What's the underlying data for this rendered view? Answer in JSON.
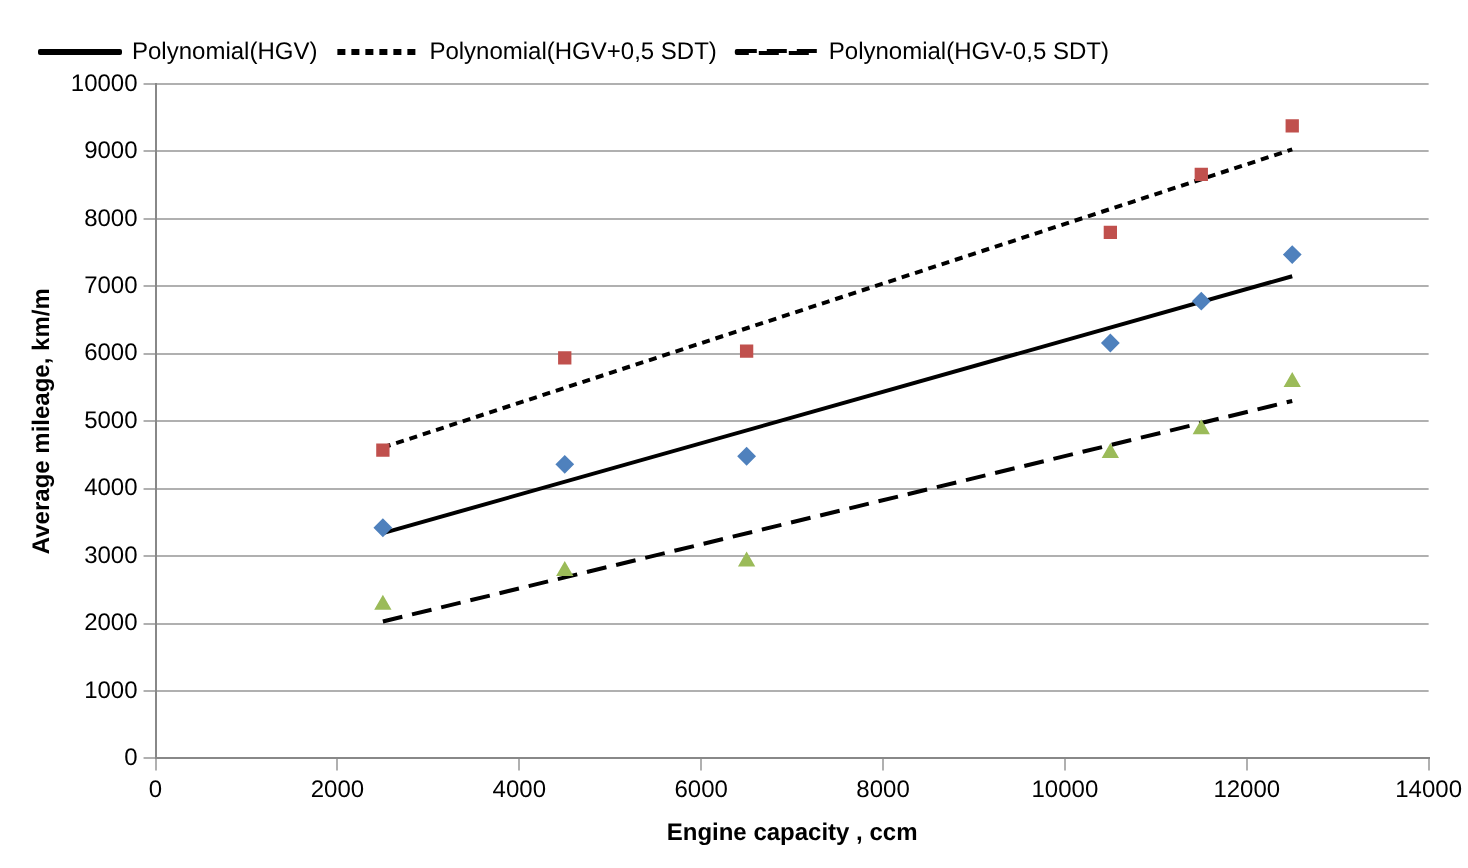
{
  "chart_data": {
    "type": "scatter",
    "xlabel": "Engine capacity , ccm",
    "ylabel": "Average mileage, km/m",
    "xlim": [
      0,
      14000
    ],
    "xticks": [
      0,
      2000,
      4000,
      6000,
      8000,
      10000,
      12000,
      14000
    ],
    "ylim": [
      0,
      10000
    ],
    "yticks": [
      0,
      1000,
      2000,
      3000,
      4000,
      5000,
      6000,
      7000,
      8000,
      9000,
      10000
    ],
    "grid": "y",
    "legend": "top left",
    "series": [
      {
        "type": "scatter",
        "color": "#4f81bd",
        "marker": "diamond",
        "x": [
          2500,
          4500,
          6500,
          10500,
          11500,
          12500
        ],
        "values": [
          3420,
          4360,
          4480,
          6160,
          6780,
          7470
        ]
      },
      {
        "type": "scatter",
        "color": "#c0504d",
        "marker": "square",
        "x": [
          2500,
          4500,
          6500,
          10500,
          11500,
          12500
        ],
        "values": [
          4570,
          5940,
          6040,
          7800,
          8660,
          9380
        ]
      },
      {
        "type": "scatter",
        "color": "#9bbb59",
        "marker": "triangle",
        "x": [
          2500,
          4500,
          6500,
          10500,
          11500,
          12500
        ],
        "values": [
          2280,
          2780,
          2920,
          4530,
          4880,
          5580
        ]
      },
      {
        "type": "line",
        "name": "Polynomial(HGV)",
        "color": "#000000",
        "line_style": "solid",
        "marker": "none",
        "x": [
          2500,
          12500
        ],
        "values": [
          3340,
          7150
        ]
      },
      {
        "type": "line",
        "name": "Polynomial(HGV+0,5 SDT)",
        "color": "#000000",
        "line_style": "dotted",
        "marker": "none",
        "x": [
          2500,
          12500
        ],
        "values": [
          4610,
          9030
        ]
      },
      {
        "type": "line",
        "name": "Polynomial(HGV-0,5 SDT)",
        "color": "#000000",
        "line_style": "dashed",
        "marker": "none",
        "x": [
          2500,
          12500
        ],
        "values": [
          2030,
          5300
        ]
      }
    ]
  }
}
